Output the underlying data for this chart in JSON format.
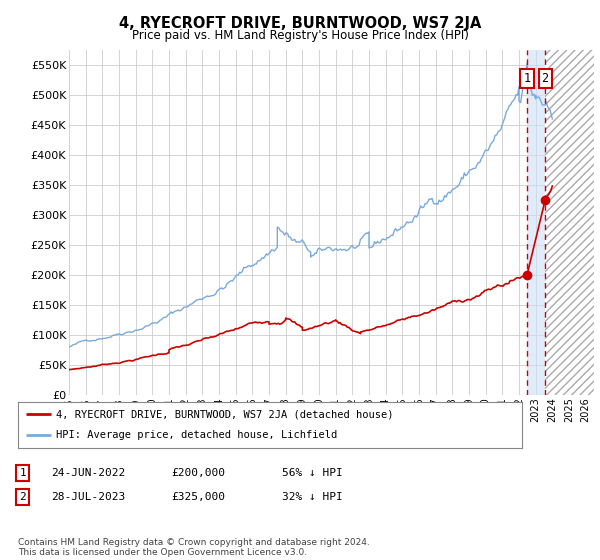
{
  "title": "4, RYECROFT DRIVE, BURNTWOOD, WS7 2JA",
  "subtitle": "Price paid vs. HM Land Registry's House Price Index (HPI)",
  "xlim": [
    1995.0,
    2026.5
  ],
  "ylim": [
    0,
    575000
  ],
  "yticks": [
    0,
    50000,
    100000,
    150000,
    200000,
    250000,
    300000,
    350000,
    400000,
    450000,
    500000,
    550000
  ],
  "ytick_labels": [
    "£0",
    "£50K",
    "£100K",
    "£150K",
    "£200K",
    "£250K",
    "£300K",
    "£350K",
    "£400K",
    "£450K",
    "£500K",
    "£550K"
  ],
  "xtick_years": [
    1995,
    1996,
    1997,
    1998,
    1999,
    2000,
    2001,
    2002,
    2003,
    2004,
    2005,
    2006,
    2007,
    2008,
    2009,
    2010,
    2011,
    2012,
    2013,
    2014,
    2015,
    2016,
    2017,
    2018,
    2019,
    2020,
    2021,
    2022,
    2023,
    2024,
    2025,
    2026
  ],
  "hpi_color": "#7aaadd",
  "property_color": "#cc0000",
  "sale1_date": 2022.48,
  "sale1_price": 200000,
  "sale2_date": 2023.57,
  "sale2_price": 325000,
  "legend_property": "4, RYECROFT DRIVE, BURNTWOOD, WS7 2JA (detached house)",
  "legend_hpi": "HPI: Average price, detached house, Lichfield",
  "table_rows": [
    {
      "num": "1",
      "date": "24-JUN-2022",
      "price": "£200,000",
      "pct": "56% ↓ HPI"
    },
    {
      "num": "2",
      "date": "28-JUL-2023",
      "price": "£325,000",
      "pct": "32% ↓ HPI"
    }
  ],
  "footer": "Contains HM Land Registry data © Crown copyright and database right 2024.\nThis data is licensed under the Open Government Licence v3.0.",
  "hatch_start": 2023.58,
  "shade_start": 2022.48,
  "shade_end": 2023.58,
  "background_color": "#ffffff",
  "grid_color": "#cccccc"
}
